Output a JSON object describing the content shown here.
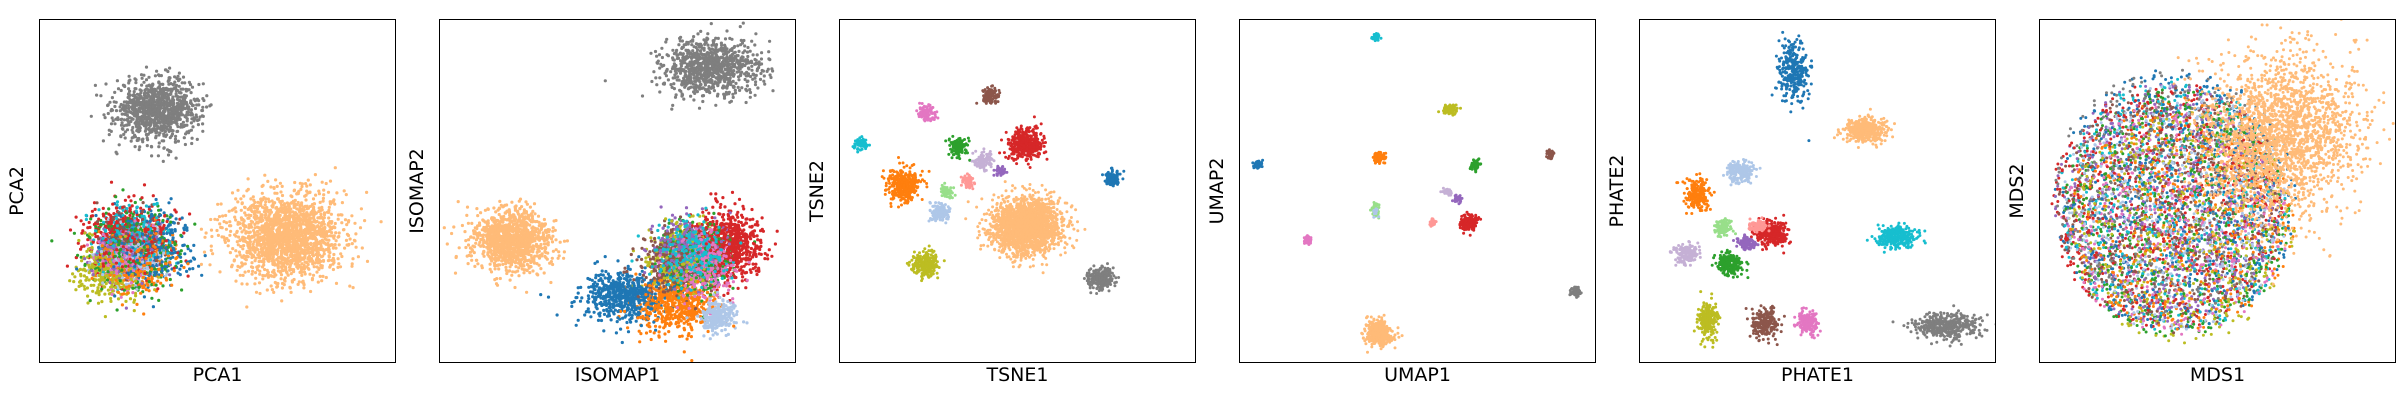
{
  "figure": {
    "colors": {
      "blue": "#1f77b4",
      "orange": "#ff7f0e",
      "green": "#2ca02c",
      "red": "#d62728",
      "purple": "#9467bd",
      "brown": "#8c564b",
      "pink": "#e377c2",
      "gray": "#7f7f7f",
      "olive": "#bcbd22",
      "cyan": "#17becf",
      "lightblue": "#aec7e8",
      "lightorange": "#ffbb78",
      "lightgreen": "#98df8a",
      "lightred": "#ff9896",
      "lightpurple": "#c5b0d5"
    }
  },
  "chart_data": [
    {
      "type": "scatter",
      "title": "",
      "xlabel": "PCA1",
      "ylabel": "PCA2",
      "xlim": [
        0,
        100
      ],
      "ylim": [
        0,
        100
      ],
      "grid": false,
      "ticks": false,
      "series": [
        {
          "color": "#7f7f7f",
          "cx": 33,
          "cy": 74,
          "rx": 13,
          "ry": 10,
          "n": 1000,
          "r": 1.6
        },
        {
          "color": "#1f77b4",
          "cx": 30,
          "cy": 34,
          "rx": 14,
          "ry": 12,
          "n": 500,
          "r": 1.6
        },
        {
          "color": "#2ca02c",
          "cx": 25,
          "cy": 33,
          "rx": 13,
          "ry": 12,
          "n": 400,
          "r": 1.6
        },
        {
          "color": "#d62728",
          "cx": 24,
          "cy": 36,
          "rx": 13,
          "ry": 12,
          "n": 500,
          "r": 1.6
        },
        {
          "color": "#bcbd22",
          "cx": 20,
          "cy": 27,
          "rx": 10,
          "ry": 10,
          "n": 350,
          "r": 1.6
        },
        {
          "color": "#ff7f0e",
          "cx": 27,
          "cy": 30,
          "rx": 11,
          "ry": 10,
          "n": 350,
          "r": 1.6
        },
        {
          "color": "#8c564b",
          "cx": 25,
          "cy": 35,
          "rx": 10,
          "ry": 9,
          "n": 200,
          "r": 1.6
        },
        {
          "color": "#9467bd",
          "cx": 24,
          "cy": 32,
          "rx": 10,
          "ry": 9,
          "n": 200,
          "r": 1.6
        },
        {
          "color": "#17becf",
          "cx": 26,
          "cy": 36,
          "rx": 11,
          "ry": 10,
          "n": 200,
          "r": 1.6
        },
        {
          "color": "#e377c2",
          "cx": 24,
          "cy": 30,
          "rx": 10,
          "ry": 10,
          "n": 150,
          "r": 1.6
        },
        {
          "color": "#aec7e8",
          "cx": 26,
          "cy": 30,
          "rx": 10,
          "ry": 10,
          "n": 150,
          "r": 1.6
        },
        {
          "color": "#ffbb78",
          "cx": 69,
          "cy": 37,
          "rx": 17,
          "ry": 14,
          "n": 1800,
          "r": 1.6
        }
      ]
    },
    {
      "type": "scatter",
      "title": "",
      "xlabel": "ISOMAP1",
      "ylabel": "ISOMAP2",
      "xlim": [
        0,
        100
      ],
      "ylim": [
        0,
        100
      ],
      "grid": false,
      "ticks": false,
      "series": [
        {
          "color": "#7f7f7f",
          "cx": 76,
          "cy": 86,
          "rx": 15,
          "ry": 9,
          "n": 900,
          "r": 1.6
        },
        {
          "color": "#ffbb78",
          "cx": 20,
          "cy": 36,
          "rx": 12,
          "ry": 10,
          "n": 1200,
          "r": 1.6
        },
        {
          "color": "#d62728",
          "cx": 80,
          "cy": 34,
          "rx": 11,
          "ry": 11,
          "n": 800,
          "r": 1.6
        },
        {
          "color": "#bcbd22",
          "cx": 68,
          "cy": 30,
          "rx": 10,
          "ry": 11,
          "n": 500,
          "r": 1.6
        },
        {
          "color": "#2ca02c",
          "cx": 72,
          "cy": 30,
          "rx": 10,
          "ry": 10,
          "n": 450,
          "r": 1.6
        },
        {
          "color": "#1f77b4",
          "cx": 52,
          "cy": 20,
          "rx": 14,
          "ry": 8,
          "n": 600,
          "r": 1.6
        },
        {
          "color": "#ff7f0e",
          "cx": 66,
          "cy": 17,
          "rx": 12,
          "ry": 9,
          "n": 500,
          "r": 1.6
        },
        {
          "color": "#8c564b",
          "cx": 66,
          "cy": 30,
          "rx": 11,
          "ry": 10,
          "n": 350,
          "r": 1.6
        },
        {
          "color": "#9467bd",
          "cx": 70,
          "cy": 34,
          "rx": 10,
          "ry": 10,
          "n": 300,
          "r": 1.6
        },
        {
          "color": "#e377c2",
          "cx": 74,
          "cy": 28,
          "rx": 10,
          "ry": 10,
          "n": 300,
          "r": 1.6
        },
        {
          "color": "#17becf",
          "cx": 70,
          "cy": 32,
          "rx": 11,
          "ry": 10,
          "n": 250,
          "r": 1.6
        },
        {
          "color": "#aec7e8",
          "cx": 78,
          "cy": 14,
          "rx": 6,
          "ry": 5,
          "n": 250,
          "r": 1.6
        }
      ]
    },
    {
      "type": "scatter",
      "title": "",
      "xlabel": "TSNE1",
      "ylabel": "TSNE2",
      "xlim": [
        0,
        100
      ],
      "ylim": [
        0,
        100
      ],
      "grid": false,
      "ticks": false,
      "series": [
        {
          "color": "#ffbb78",
          "cx": 52,
          "cy": 40,
          "rx": 11,
          "ry": 9,
          "n": 2000,
          "r": 1.5
        },
        {
          "color": "#d62728",
          "cx": 52,
          "cy": 64,
          "rx": 5,
          "ry": 5,
          "n": 400,
          "r": 1.5
        },
        {
          "color": "#ff7f0e",
          "cx": 18,
          "cy": 52,
          "rx": 5,
          "ry": 5,
          "n": 400,
          "r": 1.5
        },
        {
          "color": "#bcbd22",
          "cx": 24,
          "cy": 29,
          "rx": 4,
          "ry": 4,
          "n": 250,
          "r": 1.5
        },
        {
          "color": "#7f7f7f",
          "cx": 73,
          "cy": 25,
          "rx": 4,
          "ry": 3.5,
          "n": 250,
          "r": 1.5
        },
        {
          "color": "#8c564b",
          "cx": 42,
          "cy": 78,
          "rx": 2.5,
          "ry": 2.5,
          "n": 120,
          "r": 1.5
        },
        {
          "color": "#e377c2",
          "cx": 24,
          "cy": 73,
          "rx": 2.5,
          "ry": 2.5,
          "n": 120,
          "r": 1.5
        },
        {
          "color": "#2ca02c",
          "cx": 33,
          "cy": 63,
          "rx": 2.5,
          "ry": 3,
          "n": 120,
          "r": 1.5
        },
        {
          "color": "#c5b0d5",
          "cx": 40,
          "cy": 59,
          "rx": 3,
          "ry": 2.5,
          "n": 120,
          "r": 1.5
        },
        {
          "color": "#aec7e8",
          "cx": 28,
          "cy": 44,
          "rx": 3,
          "ry": 3,
          "n": 150,
          "r": 1.5
        },
        {
          "color": "#1f77b4",
          "cx": 76,
          "cy": 54,
          "rx": 2.5,
          "ry": 2.5,
          "n": 120,
          "r": 1.5
        },
        {
          "color": "#17becf",
          "cx": 6,
          "cy": 64,
          "rx": 2,
          "ry": 2,
          "n": 80,
          "r": 1.5
        },
        {
          "color": "#98df8a",
          "cx": 30,
          "cy": 50,
          "rx": 2,
          "ry": 2,
          "n": 60,
          "r": 1.5
        },
        {
          "color": "#ff9896",
          "cx": 36,
          "cy": 53,
          "rx": 2,
          "ry": 2,
          "n": 60,
          "r": 1.5
        },
        {
          "color": "#9467bd",
          "cx": 45,
          "cy": 56,
          "rx": 1.5,
          "ry": 1.5,
          "n": 40,
          "r": 1.5
        }
      ]
    },
    {
      "type": "scatter",
      "title": "",
      "xlabel": "UMAP1",
      "ylabel": "UMAP2",
      "xlim": [
        0,
        100
      ],
      "ylim": [
        0,
        100
      ],
      "grid": false,
      "ticks": false,
      "series": [
        {
          "color": "#ffbb78",
          "cx": 39,
          "cy": 9,
          "rx": 4,
          "ry": 4,
          "n": 400,
          "r": 1.5
        },
        {
          "color": "#d62728",
          "cx": 64,
          "cy": 41,
          "rx": 2.5,
          "ry": 2.5,
          "n": 200,
          "r": 1.5
        },
        {
          "color": "#bcbd22",
          "cx": 59,
          "cy": 74,
          "rx": 2,
          "ry": 1.5,
          "n": 120,
          "r": 1.5
        },
        {
          "color": "#ff7f0e",
          "cx": 39,
          "cy": 60,
          "rx": 1.8,
          "ry": 1.8,
          "n": 120,
          "r": 1.5
        },
        {
          "color": "#7f7f7f",
          "cx": 94,
          "cy": 21,
          "rx": 1.5,
          "ry": 1.5,
          "n": 80,
          "r": 1.5
        },
        {
          "color": "#2ca02c",
          "cx": 66,
          "cy": 58,
          "rx": 1.5,
          "ry": 1.5,
          "n": 70,
          "r": 1.5
        },
        {
          "color": "#8c564b",
          "cx": 87,
          "cy": 61,
          "rx": 1.2,
          "ry": 1.2,
          "n": 50,
          "r": 1.5
        },
        {
          "color": "#1f77b4",
          "cx": 5,
          "cy": 58,
          "rx": 1.2,
          "ry": 1.2,
          "n": 50,
          "r": 1.5
        },
        {
          "color": "#17becf",
          "cx": 38,
          "cy": 95,
          "rx": 1,
          "ry": 1,
          "n": 40,
          "r": 1.5
        },
        {
          "color": "#e377c2",
          "cx": 19,
          "cy": 36,
          "rx": 1.2,
          "ry": 1.2,
          "n": 50,
          "r": 1.5
        },
        {
          "color": "#98df8a",
          "cx": 38,
          "cy": 45,
          "rx": 1.2,
          "ry": 2,
          "n": 60,
          "r": 1.5
        },
        {
          "color": "#c5b0d5",
          "cx": 58,
          "cy": 50,
          "rx": 1.5,
          "ry": 1,
          "n": 40,
          "r": 1.5
        },
        {
          "color": "#9467bd",
          "cx": 61,
          "cy": 48,
          "rx": 1.2,
          "ry": 1.2,
          "n": 40,
          "r": 1.5
        },
        {
          "color": "#ff9896",
          "cx": 54,
          "cy": 41,
          "rx": 1,
          "ry": 1,
          "n": 30,
          "r": 1.5
        },
        {
          "color": "#aec7e8",
          "cx": 38,
          "cy": 44,
          "rx": 1,
          "ry": 1.5,
          "n": 30,
          "r": 1.5
        }
      ]
    },
    {
      "type": "scatter",
      "title": "",
      "xlabel": "PHATE1",
      "ylabel": "PHATE2",
      "xlim": [
        0,
        100
      ],
      "ylim": [
        0,
        100
      ],
      "grid": false,
      "ticks": false,
      "series": [
        {
          "color": "#1f77b4",
          "cx": 43,
          "cy": 85,
          "rx": 5,
          "ry": 10,
          "n": 300,
          "r": 1.5
        },
        {
          "color": "#ffbb78",
          "cx": 63,
          "cy": 68,
          "rx": 7,
          "ry": 4,
          "n": 400,
          "r": 1.5
        },
        {
          "color": "#17becf",
          "cx": 72,
          "cy": 37,
          "rx": 6,
          "ry": 3.5,
          "n": 300,
          "r": 1.5
        },
        {
          "color": "#7f7f7f",
          "cx": 86,
          "cy": 11,
          "rx": 10,
          "ry": 4,
          "n": 400,
          "r": 1.5
        },
        {
          "color": "#d62728",
          "cx": 37,
          "cy": 38,
          "rx": 5,
          "ry": 4,
          "n": 300,
          "r": 1.5
        },
        {
          "color": "#ff7f0e",
          "cx": 16,
          "cy": 49,
          "rx": 3.5,
          "ry": 5,
          "n": 220,
          "r": 1.5
        },
        {
          "color": "#aec7e8",
          "cx": 28,
          "cy": 56,
          "rx": 4,
          "ry": 3.5,
          "n": 200,
          "r": 1.5
        },
        {
          "color": "#2ca02c",
          "cx": 25,
          "cy": 29,
          "rx": 4,
          "ry": 3.5,
          "n": 220,
          "r": 1.5
        },
        {
          "color": "#c5b0d5",
          "cx": 13,
          "cy": 32,
          "rx": 4,
          "ry": 3,
          "n": 150,
          "r": 1.5
        },
        {
          "color": "#bcbd22",
          "cx": 19,
          "cy": 13,
          "rx": 3,
          "ry": 6,
          "n": 220,
          "r": 1.5
        },
        {
          "color": "#8c564b",
          "cx": 35,
          "cy": 12,
          "rx": 4,
          "ry": 5,
          "n": 220,
          "r": 1.5
        },
        {
          "color": "#e377c2",
          "cx": 47,
          "cy": 12,
          "rx": 3,
          "ry": 4,
          "n": 200,
          "r": 1.5
        },
        {
          "color": "#9467bd",
          "cx": 30,
          "cy": 35,
          "rx": 3,
          "ry": 2,
          "n": 100,
          "r": 1.5
        },
        {
          "color": "#ff9896",
          "cx": 33,
          "cy": 40,
          "rx": 3,
          "ry": 2,
          "n": 100,
          "r": 1.5
        },
        {
          "color": "#98df8a",
          "cx": 23,
          "cy": 40,
          "rx": 3,
          "ry": 3,
          "n": 100,
          "r": 1.5
        }
      ]
    },
    {
      "type": "scatter",
      "title": "",
      "xlabel": "MDS1",
      "ylabel": "MDS2",
      "xlim": [
        0,
        100
      ],
      "ylim": [
        0,
        100
      ],
      "grid": false,
      "ticks": false,
      "series": [
        {
          "color": "#1f77b4",
          "cx": 38,
          "cy": 48,
          "rx": 34,
          "ry": 38,
          "n": 700,
          "r": 1.5,
          "ring": true
        },
        {
          "color": "#d62728",
          "cx": 36,
          "cy": 46,
          "rx": 33,
          "ry": 36,
          "n": 700,
          "r": 1.5,
          "ring": true
        },
        {
          "color": "#2ca02c",
          "cx": 38,
          "cy": 44,
          "rx": 32,
          "ry": 36,
          "n": 600,
          "r": 1.5,
          "ring": true
        },
        {
          "color": "#8c564b",
          "cx": 37,
          "cy": 45,
          "rx": 32,
          "ry": 36,
          "n": 500,
          "r": 1.5,
          "ring": true
        },
        {
          "color": "#9467bd",
          "cx": 36,
          "cy": 47,
          "rx": 32,
          "ry": 36,
          "n": 500,
          "r": 1.5,
          "ring": true
        },
        {
          "color": "#17becf",
          "cx": 38,
          "cy": 46,
          "rx": 33,
          "ry": 37,
          "n": 400,
          "r": 1.5,
          "ring": true
        },
        {
          "color": "#bcbd22",
          "cx": 40,
          "cy": 40,
          "rx": 32,
          "ry": 34,
          "n": 500,
          "r": 1.5,
          "ring": true
        },
        {
          "color": "#e377c2",
          "cx": 38,
          "cy": 42,
          "rx": 32,
          "ry": 34,
          "n": 400,
          "r": 1.5,
          "ring": true
        },
        {
          "color": "#7f7f7f",
          "cx": 36,
          "cy": 50,
          "rx": 32,
          "ry": 36,
          "n": 400,
          "r": 1.5,
          "ring": true
        },
        {
          "color": "#ff7f0e",
          "cx": 40,
          "cy": 44,
          "rx": 32,
          "ry": 34,
          "n": 400,
          "r": 1.5,
          "ring": true
        },
        {
          "color": "#aec7e8",
          "cx": 38,
          "cy": 45,
          "rx": 32,
          "ry": 36,
          "n": 400,
          "r": 1.5,
          "ring": true
        },
        {
          "color": "#ffbb78",
          "cx": 67,
          "cy": 66,
          "rx": 23,
          "ry": 26,
          "n": 2200,
          "r": 1.5,
          "tilt": -35
        }
      ]
    }
  ]
}
